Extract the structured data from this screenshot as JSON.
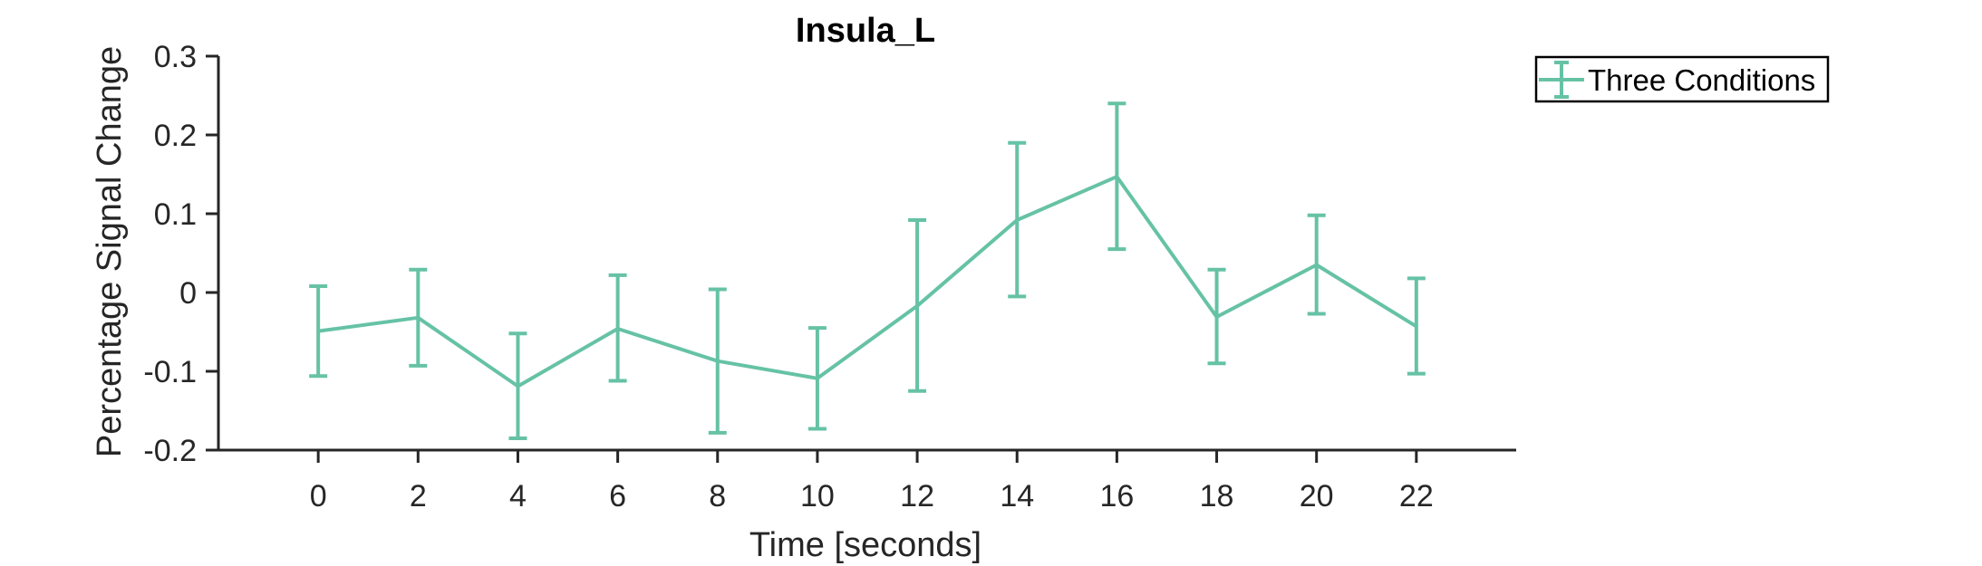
{
  "chart_data": {
    "type": "line",
    "title": "Insula_L",
    "xlabel": "Time [seconds]",
    "ylabel": "Percentage Signal Change",
    "xlim": [
      -2,
      24
    ],
    "ylim": [
      -0.2,
      0.3
    ],
    "x_ticks": [
      "0",
      "2",
      "4",
      "6",
      "8",
      "10",
      "12",
      "14",
      "16",
      "18",
      "20",
      "22"
    ],
    "y_ticks": [
      "-0.2",
      "-0.1",
      "0",
      "0.1",
      "0.2",
      "0.3"
    ],
    "grid": false,
    "legend_position": "outside-top-right",
    "series": [
      {
        "name": "Three Conditions",
        "color": "#66c2a5",
        "x": [
          0,
          2,
          4,
          6,
          8,
          10,
          12,
          14,
          16,
          18,
          20,
          22
        ],
        "y": [
          -0.049,
          -0.032,
          -0.119,
          -0.046,
          -0.087,
          -0.109,
          -0.017,
          0.092,
          0.147,
          -0.031,
          0.035,
          -0.043
        ],
        "error_upper": [
          0.008,
          0.029,
          -0.052,
          0.022,
          0.004,
          -0.045,
          0.092,
          0.19,
          0.24,
          0.029,
          0.098,
          0.018
        ],
        "error_lower": [
          -0.106,
          -0.093,
          -0.185,
          -0.112,
          -0.178,
          -0.173,
          -0.125,
          -0.005,
          0.055,
          -0.09,
          -0.027,
          -0.103
        ]
      }
    ]
  }
}
